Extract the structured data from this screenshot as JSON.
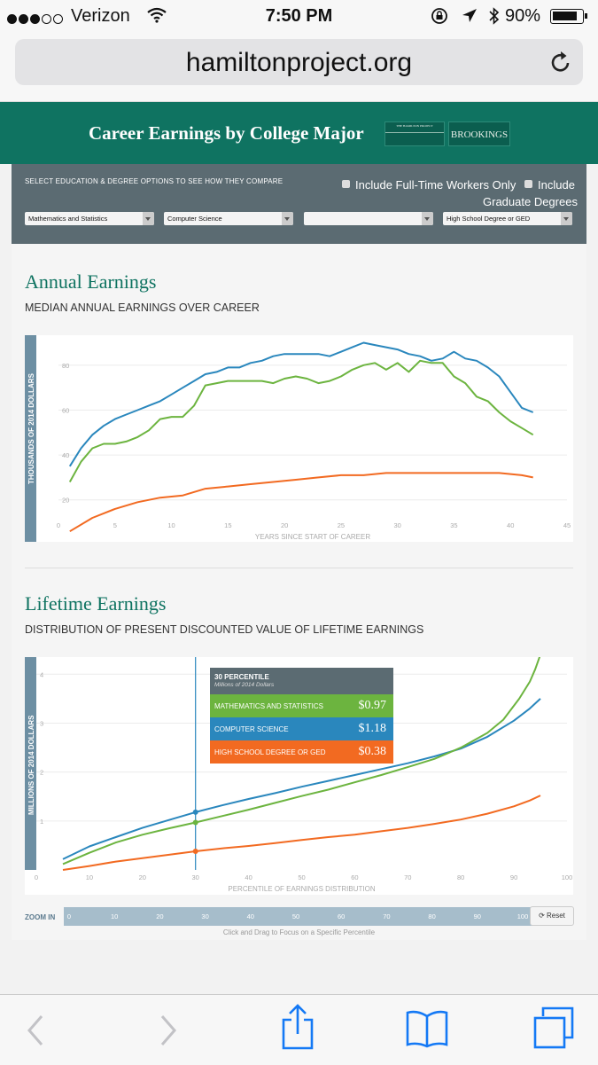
{
  "status_bar": {
    "carrier": "Verizon",
    "time": "7:50 PM",
    "battery": "90%",
    "battery_level": 0.9
  },
  "browser": {
    "url": "hamiltonproject.org"
  },
  "header": {
    "title": "Career Earnings by College Major",
    "logo_hamilton": "THE HAMILTON PROJECT",
    "logo_brookings": "BROOKINGS"
  },
  "controls": {
    "instruction": "SELECT EDUCATION & DEGREE OPTIONS TO SEE HOW THEY COMPARE",
    "checkbox_fulltime": "Include Full-Time Workers Only",
    "checkbox_graduate_line1": "Include",
    "checkbox_graduate_line2": "Graduate Degrees",
    "selects": [
      "Mathematics and Statistics",
      "Computer Science",
      "",
      "High School Degree or GED"
    ]
  },
  "annual": {
    "heading": "Annual Earnings",
    "subheading": "MEDIAN ANNUAL EARNINGS OVER CAREER"
  },
  "lifetime": {
    "heading": "Lifetime Earnings",
    "subheading": "DISTRIBUTION OF PRESENT DISCOUNTED VALUE OF LIFETIME EARNINGS",
    "tooltip": {
      "title": "30 PERCENTILE",
      "subtitle": "Millions of 2014 Dollars",
      "rows": [
        {
          "label": "MATHEMATICS AND STATISTICS",
          "value": "$0.97"
        },
        {
          "label": "COMPUTER SCIENCE",
          "value": "$1.18"
        },
        {
          "label": "HIGH SCHOOL DEGREE OR GED",
          "value": "$0.38"
        }
      ]
    }
  },
  "zoom": {
    "label": "ZOOM IN",
    "ticks": [
      "0",
      "10",
      "20",
      "30",
      "40",
      "50",
      "60",
      "70",
      "80",
      "90",
      "100"
    ],
    "reset": "⟳ Reset",
    "hint": "Click and Drag to Focus on a Specific Percentile"
  },
  "colors": {
    "green": "#6cb43f",
    "blue": "#2a87bd",
    "orange": "#f26a21",
    "brand": "#0f7361"
  },
  "chart_data": [
    {
      "type": "line",
      "title": "Annual Earnings",
      "xlabel": "YEARS SINCE START OF CAREER",
      "ylabel": "THOUSANDS OF 2014 DOLLARS",
      "xlim": [
        0,
        45
      ],
      "ylim": [
        12,
        91
      ],
      "xticks": [
        0,
        5,
        10,
        15,
        20,
        25,
        30,
        35,
        40,
        45
      ],
      "yticks": [
        20,
        40,
        60,
        80
      ],
      "series": [
        {
          "name": "Computer Science",
          "color": "#2a87bd",
          "x": [
            1,
            2,
            3,
            4,
            5,
            6,
            7,
            8,
            9,
            10,
            11,
            12,
            13,
            14,
            15,
            16,
            17,
            18,
            19,
            20,
            21,
            22,
            23,
            24,
            25,
            26,
            27,
            28,
            29,
            30,
            31,
            32,
            33,
            34,
            35,
            36,
            37,
            38,
            39,
            40,
            41,
            42
          ],
          "y": [
            35,
            43,
            49,
            53,
            56,
            58,
            60,
            62,
            64,
            67,
            70,
            73,
            76,
            77,
            79,
            79,
            81,
            82,
            84,
            85,
            85,
            85,
            85,
            84,
            86,
            88,
            90,
            89,
            88,
            87,
            85,
            84,
            82,
            83,
            86,
            83,
            82,
            79,
            75,
            68,
            61,
            59
          ]
        },
        {
          "name": "Mathematics and Statistics",
          "color": "#6cb43f",
          "x": [
            1,
            2,
            3,
            4,
            5,
            6,
            7,
            8,
            9,
            10,
            11,
            12,
            13,
            14,
            15,
            16,
            17,
            18,
            19,
            20,
            21,
            22,
            23,
            24,
            25,
            26,
            27,
            28,
            29,
            30,
            31,
            32,
            33,
            34,
            35,
            36,
            37,
            38,
            39,
            40,
            41,
            42
          ],
          "y": [
            28,
            37,
            43,
            45,
            45,
            46,
            48,
            51,
            56,
            57,
            57,
            62,
            71,
            72,
            73,
            73,
            73,
            73,
            72,
            74,
            75,
            74,
            72,
            73,
            75,
            78,
            80,
            81,
            78,
            81,
            77,
            82,
            81,
            81,
            75,
            72,
            66,
            64,
            59,
            55,
            52,
            49
          ]
        },
        {
          "name": "High School Degree or GED",
          "color": "#f26a21",
          "x": [
            1,
            3,
            5,
            7,
            9,
            11,
            13,
            15,
            17,
            19,
            21,
            23,
            25,
            27,
            29,
            31,
            33,
            35,
            37,
            39,
            41,
            42
          ],
          "y": [
            6,
            12,
            16,
            19,
            21,
            22,
            25,
            26,
            27,
            28,
            29,
            30,
            31,
            31,
            32,
            32,
            32,
            32,
            32,
            32,
            31,
            30
          ]
        }
      ]
    },
    {
      "type": "line",
      "title": "Lifetime Earnings",
      "xlabel": "PERCENTILE OF EARNINGS DISTRIBUTION",
      "ylabel": "MILLIONS OF 2014 DOLLARS",
      "xlim": [
        0,
        100
      ],
      "ylim": [
        0,
        4.35
      ],
      "xticks": [
        0,
        10,
        20,
        30,
        40,
        50,
        60,
        70,
        80,
        90,
        100
      ],
      "yticks": [
        1,
        2,
        3,
        4
      ],
      "highlight_percentile": 30,
      "series": [
        {
          "name": "Computer Science",
          "color": "#2a87bd",
          "x": [
            5,
            10,
            15,
            20,
            25,
            30,
            35,
            40,
            45,
            50,
            55,
            60,
            65,
            70,
            75,
            80,
            85,
            90,
            93,
            95
          ],
          "y": [
            0.22,
            0.48,
            0.67,
            0.86,
            1.02,
            1.18,
            1.32,
            1.45,
            1.57,
            1.7,
            1.82,
            1.94,
            2.06,
            2.18,
            2.32,
            2.48,
            2.72,
            3.05,
            3.3,
            3.5
          ]
        },
        {
          "name": "Mathematics and Statistics",
          "color": "#6cb43f",
          "x": [
            5,
            10,
            15,
            20,
            25,
            30,
            35,
            40,
            45,
            50,
            55,
            60,
            65,
            70,
            75,
            80,
            85,
            88,
            91,
            93,
            94,
            95
          ],
          "y": [
            0.12,
            0.35,
            0.56,
            0.72,
            0.85,
            0.97,
            1.1,
            1.23,
            1.37,
            1.51,
            1.64,
            1.79,
            1.94,
            2.1,
            2.27,
            2.5,
            2.8,
            3.07,
            3.5,
            3.85,
            4.1,
            4.4
          ]
        },
        {
          "name": "High School Degree or GED",
          "color": "#f26a21",
          "x": [
            5,
            10,
            15,
            20,
            25,
            30,
            35,
            40,
            45,
            50,
            55,
            60,
            65,
            70,
            75,
            80,
            85,
            90,
            93,
            95
          ],
          "y": [
            0.0,
            0.08,
            0.17,
            0.24,
            0.31,
            0.38,
            0.44,
            0.49,
            0.55,
            0.61,
            0.67,
            0.72,
            0.79,
            0.86,
            0.94,
            1.03,
            1.15,
            1.3,
            1.42,
            1.52
          ]
        }
      ]
    }
  ]
}
